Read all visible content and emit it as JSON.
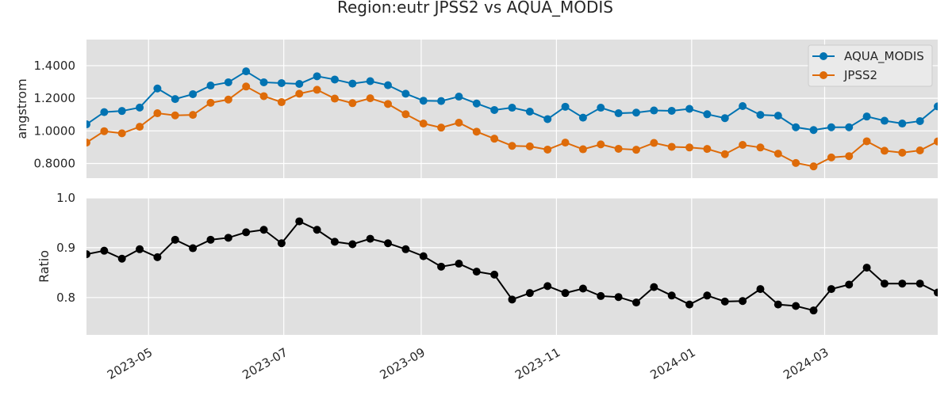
{
  "chart_data": {
    "title": "Region:eutr JPSS2 vs AQUA_MODIS",
    "type": "line",
    "x_dates": [
      "2023-04-03",
      "2023-04-11",
      "2023-04-19",
      "2023-04-27",
      "2023-05-05",
      "2023-05-13",
      "2023-05-21",
      "2023-05-29",
      "2023-06-06",
      "2023-06-14",
      "2023-06-22",
      "2023-06-30",
      "2023-07-08",
      "2023-07-16",
      "2023-07-24",
      "2023-08-01",
      "2023-08-09",
      "2023-08-17",
      "2023-08-25",
      "2023-09-02",
      "2023-09-10",
      "2023-09-18",
      "2023-09-26",
      "2023-10-04",
      "2023-10-12",
      "2023-10-20",
      "2023-10-28",
      "2023-11-05",
      "2023-11-13",
      "2023-11-21",
      "2023-11-29",
      "2023-12-07",
      "2023-12-15",
      "2023-12-23",
      "2023-12-31",
      "2024-01-08",
      "2024-01-16",
      "2024-01-24",
      "2024-02-01",
      "2024-02-09",
      "2024-02-17",
      "2024-02-25",
      "2024-03-04",
      "2024-03-12",
      "2024-03-20",
      "2024-03-28",
      "2024-04-05",
      "2024-04-13",
      "2024-04-21"
    ],
    "x_ticks": [
      "2023-05",
      "2023-07",
      "2023-09",
      "2023-11",
      "2024-01",
      "2024-03"
    ],
    "x_range": [
      "2023-04-03",
      "2024-04-21"
    ],
    "top": {
      "ylabel": "angstrom",
      "ylim": [
        0.71,
        1.56
      ],
      "yticks": [
        "0.8000",
        "1.0000",
        "1.2000",
        "1.4000"
      ],
      "legend_position": "upper right",
      "series": [
        {
          "name": "AQUA_MODIS",
          "color": "#0173b2",
          "values": [
            1.04,
            1.115,
            1.122,
            1.143,
            1.26,
            1.195,
            1.225,
            1.278,
            1.298,
            1.365,
            1.298,
            1.293,
            1.288,
            1.335,
            1.315,
            1.29,
            1.305,
            1.28,
            1.228,
            1.185,
            1.183,
            1.21,
            1.168,
            1.128,
            1.142,
            1.118,
            1.072,
            1.148,
            1.081,
            1.142,
            1.108,
            1.112,
            1.125,
            1.123,
            1.135,
            1.102,
            1.078,
            1.152,
            1.098,
            1.093,
            1.022,
            1.005,
            1.022,
            1.022,
            1.088,
            1.062,
            1.045,
            1.06,
            1.15
          ]
        },
        {
          "name": "JPSS2",
          "color": "#de6b09",
          "values": [
            0.928,
            0.998,
            0.985,
            1.025,
            1.108,
            1.095,
            1.098,
            1.172,
            1.192,
            1.272,
            1.213,
            1.176,
            1.228,
            1.252,
            1.198,
            1.17,
            1.2,
            1.165,
            1.102,
            1.045,
            1.02,
            1.05,
            0.995,
            0.952,
            0.908,
            0.905,
            0.885,
            0.928,
            0.887,
            0.917,
            0.89,
            0.884,
            0.926,
            0.902,
            0.898,
            0.889,
            0.857,
            0.914,
            0.898,
            0.86,
            0.803,
            0.782,
            0.837,
            0.845,
            0.936,
            0.878,
            0.866,
            0.88,
            0.935
          ]
        }
      ]
    },
    "bottom": {
      "ylabel": "Ratio",
      "ylim": [
        0.725,
        1.0
      ],
      "yticks": [
        "0.8",
        "0.9",
        "1.0"
      ],
      "series": [
        {
          "name": "",
          "color": "#000000",
          "values": [
            0.887,
            0.894,
            0.878,
            0.897,
            0.881,
            0.916,
            0.899,
            0.916,
            0.92,
            0.931,
            0.936,
            0.909,
            0.953,
            0.936,
            0.912,
            0.907,
            0.918,
            0.909,
            0.897,
            0.883,
            0.862,
            0.868,
            0.852,
            0.846,
            0.796,
            0.809,
            0.823,
            0.809,
            0.818,
            0.803,
            0.801,
            0.79,
            0.821,
            0.804,
            0.786,
            0.804,
            0.792,
            0.793,
            0.817,
            0.786,
            0.783,
            0.774,
            0.817,
            0.826,
            0.86,
            0.828,
            0.828,
            0.828,
            0.81
          ]
        }
      ]
    }
  }
}
